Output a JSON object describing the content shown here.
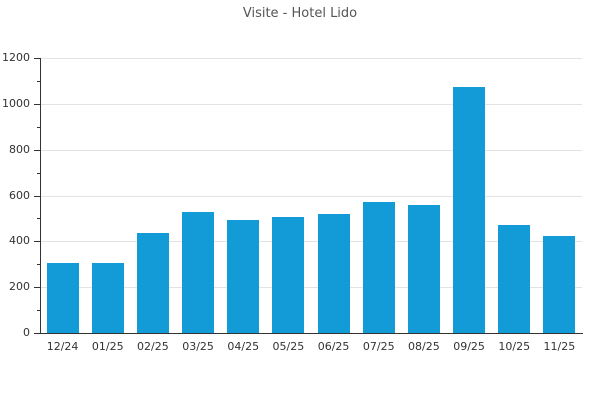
{
  "chart_data": {
    "type": "bar",
    "title": "Visite - Hotel Lido",
    "categories": [
      "12/24",
      "01/25",
      "02/25",
      "03/25",
      "04/25",
      "05/25",
      "06/25",
      "07/25",
      "08/25",
      "09/25",
      "10/25",
      "11/25"
    ],
    "values": [
      305,
      305,
      435,
      530,
      495,
      505,
      520,
      570,
      560,
      1075,
      470,
      425
    ],
    "xlabel": "",
    "ylabel": "",
    "ylim": [
      0,
      1200
    ],
    "y_major_step": 200,
    "y_minor_step": 100,
    "y_tick_labels": [
      "0",
      "200",
      "400",
      "600",
      "800",
      "1000",
      "1200"
    ],
    "grid": "horizontal-major-only",
    "legend_position": "none",
    "colors": {
      "bar": "#129bd7",
      "grid": "#e3e3e3",
      "axis": "#333333",
      "tick_label": "#333333",
      "title": "#555557"
    }
  }
}
